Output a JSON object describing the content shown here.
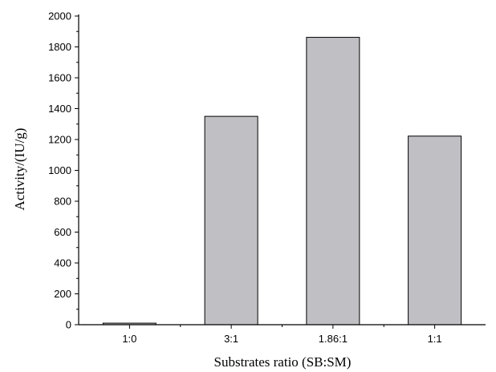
{
  "chart_data": {
    "type": "bar",
    "categories": [
      "1:0",
      "3:1",
      "1.86:1",
      "1:1"
    ],
    "values": [
      10,
      1350,
      1862,
      1222
    ],
    "xlabel": "Substrates ratio (SB:SM)",
    "ylabel": "Activity/(IU/g)",
    "ylim": [
      0,
      2000
    ],
    "yticks": [
      "0",
      "200",
      "400",
      "600",
      "800",
      "1000",
      "1200",
      "1400",
      "1600",
      "1800",
      "2000"
    ],
    "grid": false,
    "legend": "none",
    "colors": {
      "bar_fill": "#c0c0c4",
      "bar_stroke": "#000000",
      "axis": "#000000"
    }
  }
}
